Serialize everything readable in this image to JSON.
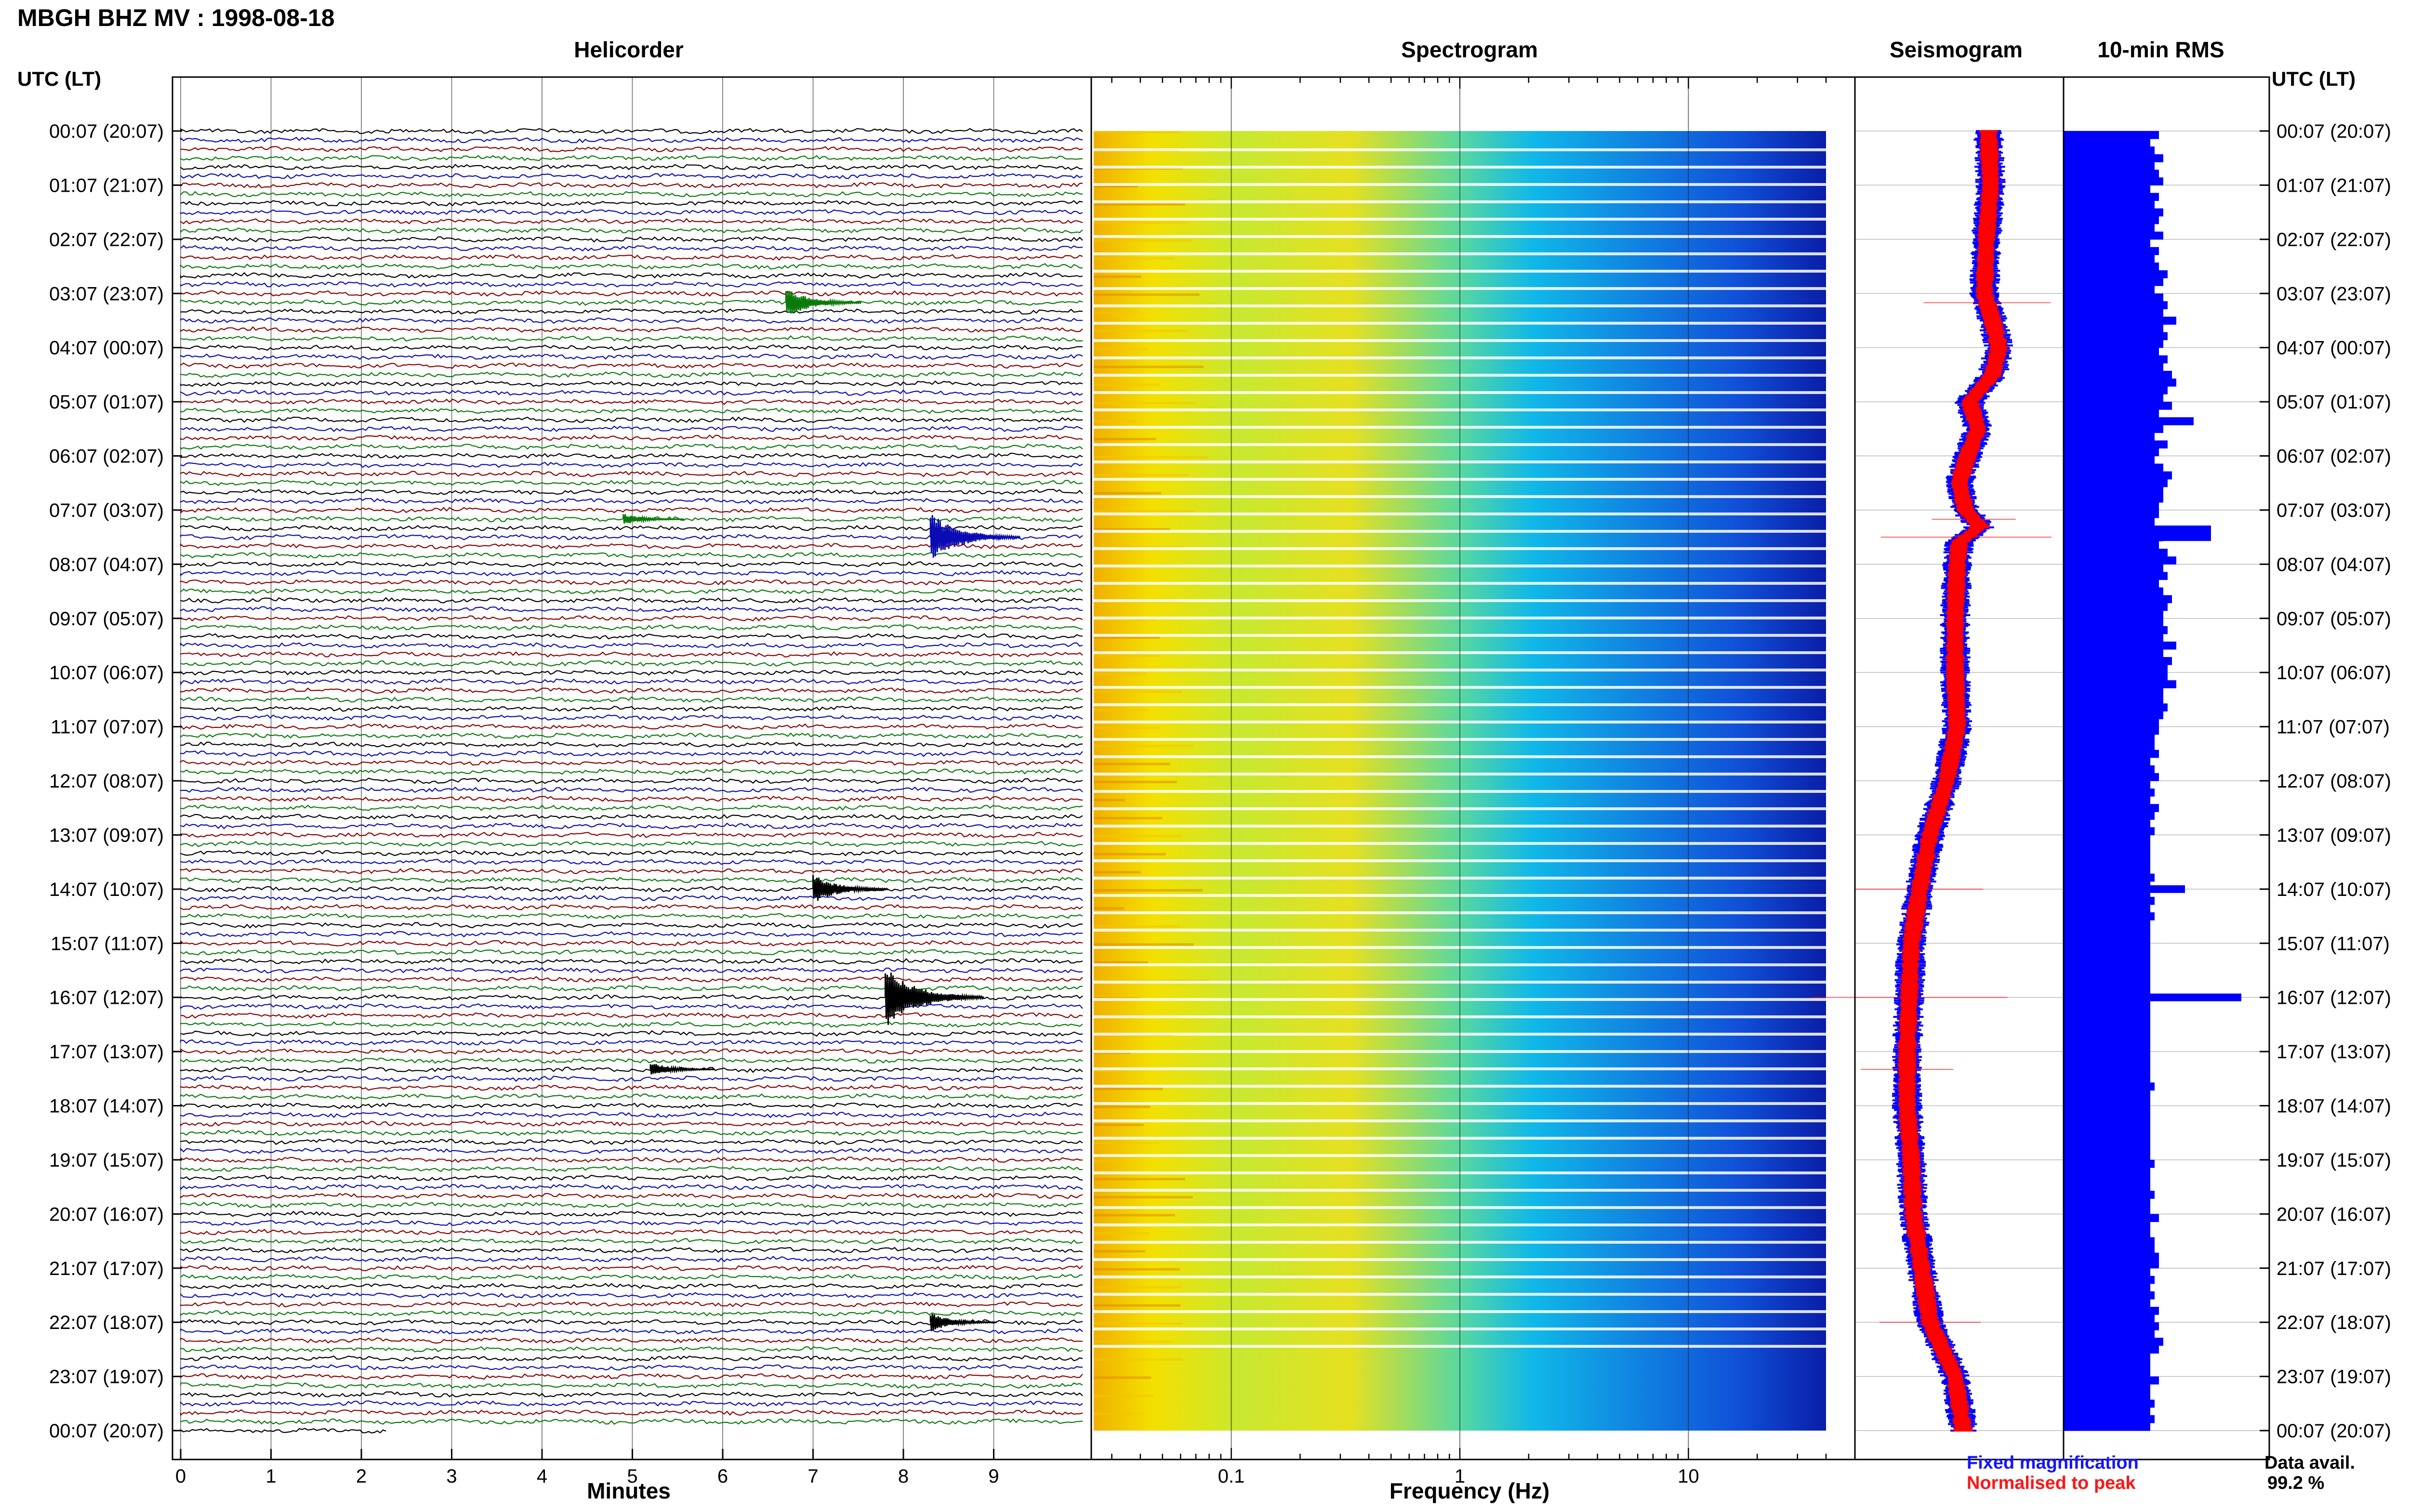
{
  "header": {
    "title": "MBGH BHZ MV : 1998-08-18"
  },
  "panels": {
    "helicorder": "Helicorder",
    "spectrogram": "Spectrogram",
    "seismogram": "Seismogram",
    "rms": "10-min RMS"
  },
  "axes": {
    "left_tz": "UTC (LT)",
    "right_tz": "UTC (LT)",
    "minutes_label": "Minutes",
    "frequency_label": "Frequency (Hz)"
  },
  "legend": {
    "fixed": "Fixed magnification",
    "normalised": "Normalised to peak"
  },
  "availability": {
    "label": "Data avail.",
    "value": "99.2 %"
  },
  "colors": {
    "trace_cycle": [
      "#000000",
      "#0b0bb5",
      "#8b0000",
      "#0a7a0a"
    ],
    "fixed": "#0000ff",
    "normalised": "#ff0000",
    "rms_bar": "#0000ff"
  },
  "chart_data": {
    "type": "helicorder",
    "time_labels": [
      "00:07 (20:07)",
      "01:07 (21:07)",
      "02:07 (22:07)",
      "03:07 (23:07)",
      "04:07 (00:07)",
      "05:07 (01:07)",
      "06:07 (02:07)",
      "07:07 (03:07)",
      "08:07 (04:07)",
      "09:07 (05:07)",
      "10:07 (06:07)",
      "11:07 (07:07)",
      "12:07 (08:07)",
      "13:07 (09:07)",
      "14:07 (10:07)",
      "15:07 (11:07)",
      "16:07 (12:07)",
      "17:07 (13:07)",
      "18:07 (14:07)",
      "19:07 (15:07)",
      "20:07 (16:07)",
      "21:07 (17:07)",
      "22:07 (18:07)",
      "23:07 (19:07)",
      "00:07 (20:07)"
    ],
    "minute_ticks": [
      "0",
      "1",
      "2",
      "3",
      "4",
      "5",
      "6",
      "7",
      "8",
      "9"
    ],
    "frequency_ticks": [
      "0.1",
      "1",
      "10"
    ],
    "frequency_range_hz": [
      0.025,
      40
    ],
    "traces_per_hour": 6,
    "events": [
      {
        "hour": 3.17,
        "minute": 6.7,
        "amp": 0.8
      },
      {
        "hour": 7.17,
        "minute": 4.9,
        "amp": 0.3
      },
      {
        "hour": 7.5,
        "minute": 8.3,
        "amp": 1.3
      },
      {
        "hour": 14.0,
        "minute": 7.0,
        "amp": 0.8
      },
      {
        "hour": 16.0,
        "minute": 7.8,
        "amp": 1.6
      },
      {
        "hour": 17.33,
        "minute": 5.2,
        "amp": 0.4
      },
      {
        "hour": 22.0,
        "minute": 8.3,
        "amp": 0.5
      }
    ],
    "rms_10min": [
      2.2,
      2.0,
      2.1,
      2.3,
      2.1,
      2.2,
      2.3,
      2.0,
      2.2,
      2.1,
      2.3,
      2.2,
      2.1,
      2.3,
      2.0,
      2.2,
      2.1,
      2.2,
      2.4,
      2.3,
      2.1,
      2.3,
      2.4,
      2.3,
      2.6,
      2.3,
      2.4,
      2.3,
      2.2,
      2.4,
      2.3,
      2.5,
      2.6,
      2.4,
      2.3,
      2.5,
      2.2,
      3.0,
      2.3,
      2.1,
      2.4,
      2.2,
      2.1,
      2.3,
      2.5,
      2.4,
      2.3,
      2.3,
      2.2,
      2.2,
      2.1,
      3.4,
      2.3,
      2.2,
      2.4,
      2.6,
      2.3,
      2.4,
      2.2,
      2.3,
      2.5,
      2.4,
      2.3,
      2.3,
      2.4,
      2.3,
      2.6,
      2.3,
      2.5,
      2.4,
      2.4,
      2.6,
      2.3,
      2.3,
      2.4,
      2.3,
      2.2,
      2.2,
      2.1,
      2.1,
      2.2,
      2.0,
      2.1,
      2.2,
      2.0,
      2.1,
      2.0,
      2.2,
      2.1,
      2.0,
      2.1,
      2.0,
      2.0,
      2.0,
      2.0,
      2.0,
      2.1,
      2.0,
      2.0,
      2.1,
      2.0,
      2.1,
      2.0,
      2.0,
      2.0,
      2.0,
      2.0,
      2.0,
      2.0,
      2.0,
      2.0,
      2.0,
      2.0,
      2.0,
      2.0,
      2.0,
      2.0,
      2.0,
      2.0,
      2.0,
      2.0,
      2.0,
      2.0,
      2.1,
      2.0,
      2.0,
      2.0,
      2.0,
      2.0,
      2.0,
      2.0,
      2.0,
      2.0,
      2.1,
      2.0,
      2.0,
      2.0,
      2.1,
      2.0,
      2.0,
      2.2,
      2.0,
      2.0,
      2.1,
      2.1,
      2.2,
      2.2,
      2.0,
      2.1,
      2.0,
      2.1,
      2.0,
      2.2,
      2.1,
      2.2,
      2.1,
      2.3,
      2.2,
      2.0,
      2.0,
      2.0,
      2.2,
      2.0,
      2.0,
      2.1,
      2.0,
      2.1,
      2.0
    ],
    "rms_events": [
      {
        "hour": 7.5,
        "value": 3.4
      },
      {
        "hour": 14.0,
        "value": 2.8
      },
      {
        "hour": 16.0,
        "value": 4.1
      }
    ],
    "seismogram_trend": [
      [
        0,
        0.64
      ],
      [
        1,
        0.65
      ],
      [
        2,
        0.63
      ],
      [
        3,
        0.62
      ],
      [
        3.5,
        0.66
      ],
      [
        4,
        0.69
      ],
      [
        4.5,
        0.66
      ],
      [
        5,
        0.55
      ],
      [
        5.5,
        0.59
      ],
      [
        6,
        0.54
      ],
      [
        6.5,
        0.5
      ],
      [
        7,
        0.53
      ],
      [
        7.3,
        0.6
      ],
      [
        7.6,
        0.5
      ],
      [
        8,
        0.49
      ],
      [
        9,
        0.48
      ],
      [
        10,
        0.48
      ],
      [
        11,
        0.49
      ],
      [
        12,
        0.44
      ],
      [
        13,
        0.36
      ],
      [
        14,
        0.31
      ],
      [
        15,
        0.27
      ],
      [
        16,
        0.26
      ],
      [
        17,
        0.25
      ],
      [
        18,
        0.25
      ],
      [
        19,
        0.27
      ],
      [
        20,
        0.28
      ],
      [
        21,
        0.32
      ],
      [
        22,
        0.36
      ],
      [
        23,
        0.48
      ],
      [
        24,
        0.52
      ]
    ]
  }
}
